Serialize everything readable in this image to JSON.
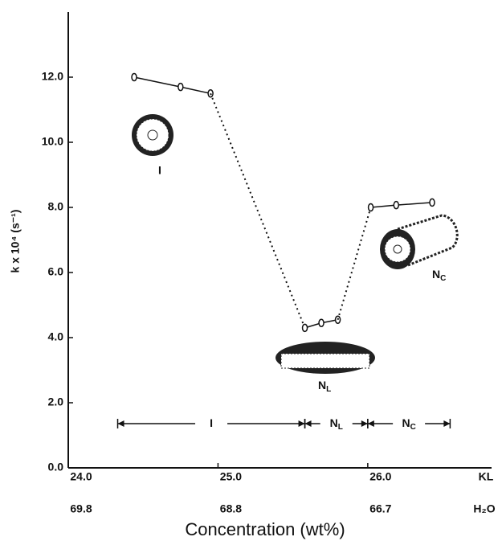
{
  "chart_data": {
    "type": "line",
    "x_label": "Concentration (wt%)",
    "y_label": "k x 10⁴ (s⁻¹)",
    "xlim": [
      24.0,
      26.8
    ],
    "ylim": [
      0,
      14
    ],
    "xticks": [
      {
        "value": 24.0,
        "label": "24.0"
      },
      {
        "value": 25.0,
        "label": "25.0"
      },
      {
        "value": 26.0,
        "label": "26.0"
      }
    ],
    "xticks_row_name": "KL",
    "xticks2": [
      {
        "value": 24.0,
        "label": "69.8"
      },
      {
        "value": 25.0,
        "label": "68.8"
      },
      {
        "value": 26.0,
        "label": "66.7"
      }
    ],
    "xticks2_row_name": "H₂O",
    "yticks": [
      {
        "value": 0,
        "label": "0.0"
      },
      {
        "value": 2,
        "label": "2.0"
      },
      {
        "value": 4,
        "label": "4.0"
      },
      {
        "value": 6,
        "label": "6.0"
      },
      {
        "value": 8,
        "label": "8.0"
      },
      {
        "value": 10,
        "label": "10.0"
      },
      {
        "value": 12,
        "label": "12.0"
      }
    ],
    "series": [
      {
        "name": "I",
        "color": "#111",
        "x": [
          24.44,
          24.75,
          24.95
        ],
        "values": [
          12.0,
          11.7,
          11.5
        ]
      },
      {
        "name": "N",
        "sub": "L",
        "color": "#111",
        "x": [
          25.58,
          25.69,
          25.8
        ],
        "values": [
          4.3,
          4.45,
          4.55
        ]
      },
      {
        "name": "N",
        "sub": "C",
        "color": "#111",
        "x": [
          26.02,
          26.19,
          26.43
        ],
        "values": [
          8.0,
          8.07,
          8.15
        ]
      }
    ],
    "phases": [
      {
        "name": "I",
        "start": 24.33,
        "end": 25.58
      },
      {
        "name": "N",
        "sub": "L",
        "start": 25.58,
        "end": 26.0
      },
      {
        "name": "N",
        "sub": "C",
        "start": 26.0,
        "end": 26.55
      }
    ]
  }
}
